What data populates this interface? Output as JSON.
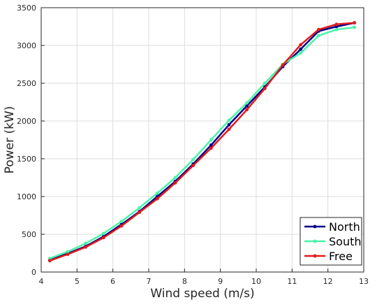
{
  "chart_data": {
    "type": "line",
    "xlabel": "Wind speed (m/s)",
    "ylabel": "Power (kW)",
    "xlim": [
      4,
      13
    ],
    "ylim": [
      0,
      3500
    ],
    "xticks": [
      4,
      5,
      6,
      7,
      8,
      9,
      10,
      11,
      12,
      13
    ],
    "yticks": [
      0,
      500,
      1000,
      1500,
      2000,
      2500,
      3000,
      3500
    ],
    "grid": true,
    "legend_position": "bottom-right",
    "series": [
      {
        "name": "North",
        "color": "#00008b",
        "x": [
          4.24,
          4.74,
          5.24,
          5.74,
          6.24,
          6.74,
          7.24,
          7.74,
          8.24,
          8.74,
          9.24,
          9.74,
          10.24,
          10.74,
          11.24,
          11.74,
          12.24,
          12.74
        ],
        "y": [
          160,
          245,
          340,
          470,
          630,
          800,
          1000,
          1200,
          1430,
          1680,
          1950,
          2200,
          2450,
          2720,
          2950,
          3190,
          3250,
          3300
        ]
      },
      {
        "name": "South",
        "color": "#4af3a8",
        "x": [
          4.24,
          4.74,
          5.24,
          5.74,
          6.24,
          6.74,
          7.24,
          7.74,
          8.24,
          8.74,
          9.24,
          9.74,
          10.24,
          10.74,
          11.24,
          11.74,
          12.24,
          12.74
        ],
        "y": [
          180,
          270,
          380,
          510,
          670,
          850,
          1045,
          1250,
          1490,
          1750,
          2010,
          2240,
          2500,
          2750,
          2900,
          3130,
          3210,
          3240
        ]
      },
      {
        "name": "Free",
        "color": "#e31a1c",
        "x": [
          4.24,
          4.74,
          5.24,
          5.74,
          6.24,
          6.74,
          7.24,
          7.74,
          8.24,
          8.74,
          9.24,
          9.74,
          10.24,
          10.74,
          11.24,
          11.74,
          12.24,
          12.74
        ],
        "y": [
          150,
          235,
          330,
          455,
          610,
          790,
          970,
          1180,
          1410,
          1640,
          1890,
          2150,
          2430,
          2740,
          3010,
          3210,
          3280,
          3300
        ]
      }
    ]
  }
}
